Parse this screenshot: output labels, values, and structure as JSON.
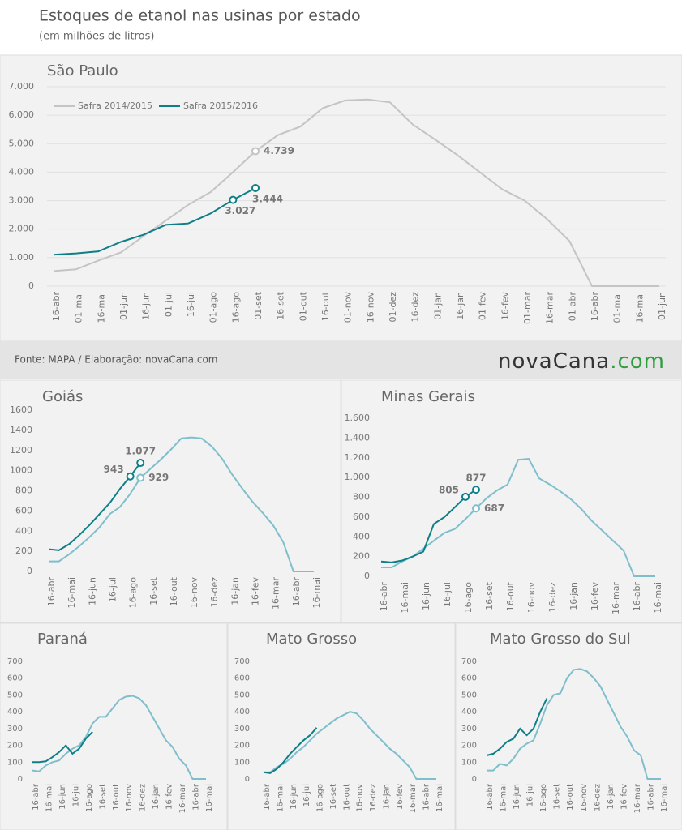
{
  "header": {
    "title": "Estoques de etanol nas usinas por estado",
    "subtitle": "(em milhões de litros)"
  },
  "footer": {
    "source": "Fonte: MAPA / Elaboração: novaCana.com",
    "logo": [
      "novaCana",
      ".com"
    ]
  },
  "chart_data": [
    {
      "type": "line",
      "title": "São Paulo",
      "grid": true,
      "categories": [
        "16-abr",
        "01-mai",
        "16-mai",
        "01-jun",
        "16-jun",
        "01-jul",
        "16-jul",
        "01-ago",
        "16-ago",
        "01-set",
        "16-set",
        "01-out",
        "16-out",
        "01-nov",
        "16-nov",
        "01-dez",
        "16-dez",
        "01-jan",
        "16-jan",
        "01-fev",
        "16-fev",
        "01-mar",
        "16-mar",
        "01-abr",
        "16-abr",
        "01-mai",
        "16-mai",
        "01-jun"
      ],
      "ylim": [
        0,
        7000
      ],
      "yticks": [
        0,
        {
          "value": 1000,
          "label": "1.000"
        },
        {
          "value": 2000,
          "label": "2.000"
        },
        {
          "value": 3000,
          "label": "3.000"
        },
        {
          "value": 4000,
          "label": "4.000"
        },
        {
          "value": 5000,
          "label": "5.000"
        },
        {
          "value": 6000,
          "label": "6.000"
        },
        {
          "value": 7000,
          "label": "7.000"
        }
      ],
      "series": [
        {
          "name": "Safra 2014/2015",
          "color": "#c4c4c4",
          "values": [
            530,
            590,
            900,
            1180,
            1750,
            2300,
            2850,
            3300,
            4000,
            4739,
            5300,
            5600,
            6250,
            6520,
            6550,
            6450,
            5680,
            5150,
            4600,
            4000,
            3400,
            3000,
            2350,
            1580,
            0,
            0,
            0,
            0
          ],
          "value_labels": [
            null,
            null,
            null,
            null,
            null,
            null,
            null,
            null,
            null,
            "4.739",
            null,
            null,
            null,
            null,
            null,
            null,
            null,
            null,
            null,
            null,
            null,
            null,
            null,
            null,
            null,
            null,
            null,
            null
          ]
        },
        {
          "name": "Safra 2015/2016",
          "color": "#0e7f86",
          "values": [
            1100,
            1150,
            1220,
            1550,
            1800,
            2150,
            2200,
            2550,
            3027,
            3444,
            null,
            null,
            null,
            null,
            null,
            null,
            null,
            null,
            null,
            null,
            null,
            null,
            null,
            null,
            null,
            null,
            null,
            null
          ],
          "value_labels": [
            null,
            null,
            null,
            null,
            null,
            null,
            null,
            null,
            "3.027",
            "3.444",
            null,
            null,
            null,
            null,
            null,
            null,
            null,
            null,
            null,
            null,
            null,
            null,
            null,
            null,
            null,
            null,
            null,
            null
          ]
        }
      ]
    },
    {
      "type": "line",
      "title": "Goiás",
      "categories": [
        "16-abr",
        null,
        "16-mai",
        null,
        "16-jun",
        null,
        "16-jul",
        null,
        "16-ago",
        null,
        "16-set",
        null,
        "16-out",
        null,
        "16-nov",
        null,
        "16-dez",
        null,
        "16-jan",
        null,
        "16-fev",
        null,
        "16-mar",
        null,
        "16-abr",
        null,
        "16-mai"
      ],
      "ylim": [
        0,
        1600
      ],
      "yticks": [
        0,
        200,
        400,
        600,
        800,
        1000,
        1200,
        1400,
        1600
      ],
      "series": [
        {
          "color": "#7fbfcc",
          "values": [
            100,
            100,
            170,
            250,
            340,
            440,
            570,
            640,
            770,
            929,
            1020,
            1110,
            1210,
            1320,
            1330,
            1320,
            1240,
            1120,
            960,
            820,
            690,
            580,
            460,
            290,
            0,
            0,
            0
          ],
          "value_labels": [
            null,
            null,
            null,
            null,
            null,
            null,
            null,
            null,
            null,
            "929",
            null,
            null,
            null,
            null,
            null,
            null,
            null,
            null,
            null,
            null,
            null,
            null,
            null,
            null,
            null,
            null,
            null
          ]
        },
        {
          "color": "#0e7f86",
          "values": [
            220,
            210,
            270,
            360,
            460,
            570,
            680,
            820,
            943,
            1077,
            null,
            null,
            null,
            null,
            null,
            null,
            null,
            null,
            null,
            null,
            null,
            null,
            null,
            null,
            null,
            null,
            null
          ],
          "value_labels": [
            null,
            null,
            null,
            null,
            null,
            null,
            null,
            null,
            "943",
            "1.077",
            null,
            null,
            null,
            null,
            null,
            null,
            null,
            null,
            null,
            null,
            null,
            null,
            null,
            null,
            null,
            null,
            null
          ]
        }
      ]
    },
    {
      "type": "line",
      "title": "Minas Gerais",
      "categories": [
        "16-abr",
        null,
        "16-mai",
        null,
        "16-jun",
        null,
        "16-jul",
        null,
        "16-ago",
        null,
        "16-set",
        null,
        "16-out",
        null,
        "16-nov",
        null,
        "16-dez",
        null,
        "16-jan",
        null,
        "16-fev",
        null,
        "16-mar",
        null,
        "16-abr",
        null,
        "16-mai"
      ],
      "ylim": [
        0,
        1600
      ],
      "yticks": [
        0,
        200,
        400,
        600,
        800,
        {
          "value": 1000,
          "label": "1.000"
        },
        {
          "value": 1200,
          "label": "1.200"
        },
        {
          "value": 1400,
          "label": "1.400"
        },
        {
          "value": 1600,
          "label": "1.600"
        }
      ],
      "series": [
        {
          "color": "#7fbfcc",
          "values": [
            90,
            90,
            150,
            200,
            280,
            360,
            440,
            480,
            580,
            687,
            790,
            870,
            930,
            1180,
            1190,
            990,
            930,
            860,
            780,
            680,
            560,
            460,
            360,
            260,
            0,
            0,
            0
          ],
          "value_labels": [
            null,
            null,
            null,
            null,
            null,
            null,
            null,
            null,
            null,
            "687",
            null,
            null,
            null,
            null,
            null,
            null,
            null,
            null,
            null,
            null,
            null,
            null,
            null,
            null,
            null,
            null,
            null
          ]
        },
        {
          "color": "#0e7f86",
          "values": [
            150,
            140,
            160,
            200,
            250,
            530,
            600,
            700,
            805,
            877,
            null,
            null,
            null,
            null,
            null,
            null,
            null,
            null,
            null,
            null,
            null,
            null,
            null,
            null,
            null,
            null,
            null
          ],
          "value_labels": [
            null,
            null,
            null,
            null,
            null,
            null,
            null,
            null,
            "805",
            "877",
            null,
            null,
            null,
            null,
            null,
            null,
            null,
            null,
            null,
            null,
            null,
            null,
            null,
            null,
            null,
            null,
            null
          ]
        }
      ]
    },
    {
      "type": "line",
      "title": "Paraná",
      "categories": [
        "16-abr",
        null,
        "16-mai",
        null,
        "16-jun",
        null,
        "16-jul",
        null,
        "16-ago",
        null,
        "16-set",
        null,
        "16-out",
        null,
        "16-nov",
        null,
        "16-dez",
        null,
        "16-jan",
        null,
        "16-fev",
        null,
        "16-mar",
        null,
        "16-abr",
        null,
        "16-mai"
      ],
      "ylim": [
        0,
        700
      ],
      "yticks": [
        0,
        100,
        200,
        300,
        400,
        500,
        600,
        700
      ],
      "series": [
        {
          "color": "#7fbfcc",
          "values": [
            50,
            45,
            80,
            100,
            110,
            150,
            180,
            200,
            250,
            330,
            370,
            370,
            420,
            470,
            490,
            495,
            480,
            440,
            370,
            300,
            230,
            190,
            120,
            80,
            0,
            0,
            0
          ]
        },
        {
          "color": "#0e7f86",
          "values": [
            100,
            100,
            105,
            130,
            160,
            200,
            150,
            180,
            240,
            280,
            null,
            null,
            null,
            null,
            null,
            null,
            null,
            null,
            null,
            null,
            null,
            null,
            null,
            null,
            null,
            null,
            null
          ]
        }
      ]
    },
    {
      "type": "line",
      "title": "Mato Grosso",
      "categories": [
        "16-abr",
        null,
        "16-mai",
        null,
        "16-jun",
        null,
        "16-jul",
        null,
        "16-ago",
        null,
        "16-set",
        null,
        "16-out",
        null,
        "16-nov",
        null,
        "16-dez",
        null,
        "16-jan",
        null,
        "16-fev",
        null,
        "16-mar",
        null,
        "16-abr",
        null,
        "16-mai"
      ],
      "ylim": [
        0,
        700
      ],
      "yticks": [
        0,
        100,
        200,
        300,
        400,
        500,
        600,
        700
      ],
      "series": [
        {
          "color": "#7fbfcc",
          "values": [
            40,
            40,
            70,
            90,
            120,
            160,
            190,
            230,
            270,
            300,
            330,
            360,
            380,
            400,
            390,
            350,
            300,
            260,
            220,
            180,
            150,
            110,
            70,
            0,
            0,
            0,
            0
          ]
        },
        {
          "color": "#0e7f86",
          "values": [
            40,
            35,
            60,
            100,
            150,
            190,
            230,
            260,
            305,
            null,
            null,
            null,
            null,
            null,
            null,
            null,
            null,
            null,
            null,
            null,
            null,
            null,
            null,
            null,
            null,
            null,
            null
          ]
        }
      ]
    },
    {
      "type": "line",
      "title": "Mato Grosso do Sul",
      "categories": [
        "16-abr",
        null,
        "16-mai",
        null,
        "16-jun",
        null,
        "16-jul",
        null,
        "16-ago",
        null,
        "16-set",
        null,
        "16-out",
        null,
        "16-nov",
        null,
        "16-dez",
        null,
        "16-jan",
        null,
        "16-fev",
        null,
        "16-mar",
        null,
        "16-abr",
        null,
        "16-mai"
      ],
      "ylim": [
        0,
        700
      ],
      "yticks": [
        0,
        100,
        200,
        300,
        400,
        500,
        600,
        700
      ],
      "series": [
        {
          "color": "#7fbfcc",
          "values": [
            50,
            50,
            90,
            80,
            120,
            180,
            210,
            230,
            330,
            440,
            500,
            510,
            600,
            650,
            655,
            640,
            600,
            550,
            470,
            390,
            310,
            250,
            170,
            140,
            0,
            0,
            0
          ]
        },
        {
          "color": "#0e7f86",
          "values": [
            140,
            150,
            180,
            220,
            240,
            300,
            260,
            300,
            400,
            480,
            null,
            null,
            null,
            null,
            null,
            null,
            null,
            null,
            null,
            null,
            null,
            null,
            null,
            null,
            null,
            null,
            null
          ]
        }
      ]
    }
  ]
}
